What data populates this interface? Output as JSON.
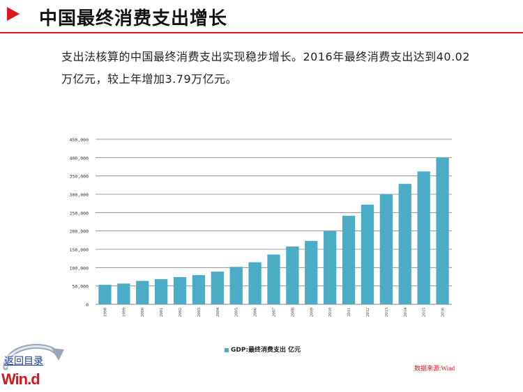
{
  "header": {
    "title": "中国最终消费支出增长"
  },
  "intro": {
    "text": "支出法核算的中国最终消费支出实现稳步增长。2016年最终消费支出达到40.02万亿元，较上年增加3.79万亿元。"
  },
  "colors": {
    "bar": "#4bacc6",
    "accent": "#e0161f",
    "grid": "#7f7f7f"
  },
  "chart_data": {
    "type": "bar",
    "categories": [
      "1998",
      "1999",
      "2000",
      "2001",
      "2002",
      "2003",
      "2004",
      "2005",
      "2006",
      "2007",
      "2008",
      "2009",
      "2010",
      "2011",
      "2012",
      "2013",
      "2014",
      "2015",
      "2016"
    ],
    "series": [
      {
        "name": "GDP:最终消费支出 亿元",
        "values": [
          53000,
          56500,
          63700,
          68500,
          74000,
          79500,
          89000,
          102000,
          114700,
          135600,
          157500,
          172700,
          199500,
          241500,
          271700,
          300300,
          328300,
          362300,
          400200
        ]
      }
    ],
    "ylim": [
      0,
      450000
    ],
    "yticks": [
      "0",
      "50,000",
      "100,000",
      "150,000",
      "200,000",
      "250,000",
      "300,000",
      "350,000",
      "400,000",
      "450,000"
    ],
    "grid": true,
    "legend": "bottom"
  },
  "legend": {
    "label": "GDP:最终消费支出  亿元"
  },
  "source": "数据来源:Wind",
  "footer": {
    "back_label": "返回目录",
    "logo_text": "Win.d"
  }
}
